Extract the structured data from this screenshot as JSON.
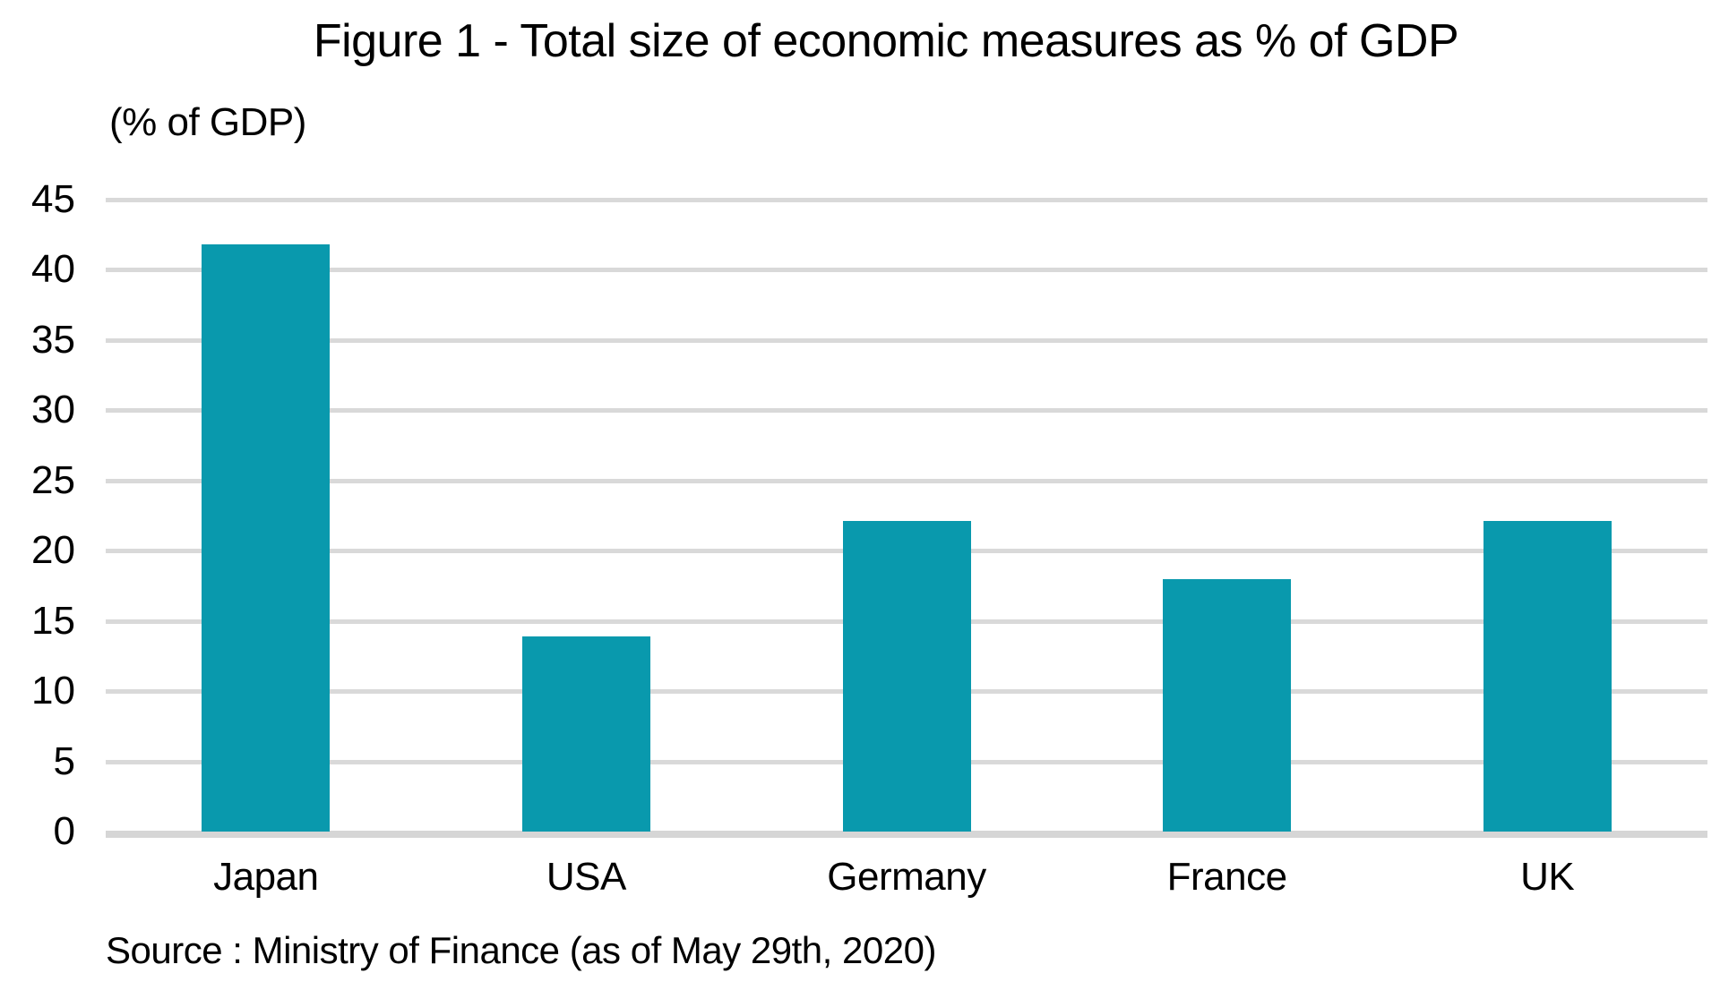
{
  "figure": {
    "title": "Figure 1 - Total size of economic measures as % of GDP",
    "y_axis_unit_label": "(% of GDP)",
    "source_note": "Source : Ministry of Finance (as of May 29th, 2020)"
  },
  "chart_data": {
    "type": "bar",
    "title": "Figure 1 - Total size of economic measures as % of GDP",
    "categories": [
      "Japan",
      "USA",
      "Germany",
      "France",
      "UK"
    ],
    "values": [
      41.8,
      13.9,
      22.1,
      18.0,
      22.1
    ],
    "xlabel": "",
    "ylabel": "(% of GDP)",
    "ylim": [
      0,
      45
    ],
    "ytick_step": 5,
    "grid": true,
    "legend": false,
    "source": "Source : Ministry of Finance (as of May 29th, 2020)",
    "bar_color": "#0999ad",
    "gridline_color": "#d9d9d9",
    "axis_line_color": "#d6d6d6",
    "text_color": "#000000",
    "background_color": "#ffffff"
  }
}
